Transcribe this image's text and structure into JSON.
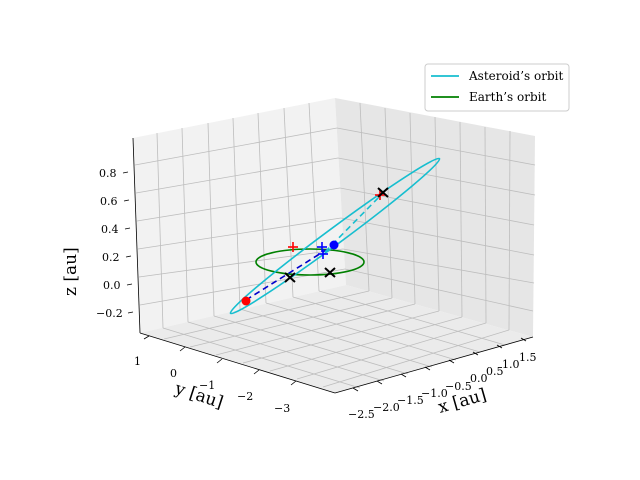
{
  "chart_data": {
    "type": "line",
    "projection": "3d",
    "title": "",
    "xlabel": "x [au]",
    "ylabel": "y [au]",
    "zlabel": "z [au]",
    "x_ticks": [
      "−2.5",
      "−2.0",
      "−1.5",
      "−1.0",
      "−0.5",
      "0.0",
      "0.5",
      "1.0",
      "1.5"
    ],
    "y_ticks": [
      "1",
      "0",
      "−1",
      "−2",
      "−3"
    ],
    "z_ticks": [
      "−0.2",
      "0.0",
      "0.2",
      "0.4",
      "0.6",
      "0.8"
    ],
    "xlim": [
      -2.7,
      1.7
    ],
    "ylim": [
      -3.6,
      1.2
    ],
    "zlim": [
      -0.3,
      0.9
    ],
    "grid": true,
    "legend_position": "top-right",
    "series": [
      {
        "name": "Asteroid’s orbit",
        "color": "#17becf",
        "style": "solid",
        "shape": "ellipse",
        "approx_span_x": [
          -2.6,
          1.6
        ],
        "approx_span_z": [
          -0.25,
          0.85
        ]
      },
      {
        "name": "Earth’s orbit",
        "color": "#008000",
        "style": "solid",
        "shape": "circle",
        "radius": 1.0,
        "z": 0.0
      }
    ],
    "markers": [
      {
        "symbol": "dot",
        "color": "#ff0000"
      },
      {
        "symbol": "dot",
        "color": "#0000ff"
      },
      {
        "symbol": "plus",
        "color": "#ff0000"
      },
      {
        "symbol": "plus",
        "color": "#0000ff"
      },
      {
        "symbol": "x",
        "color": "#000000"
      }
    ]
  }
}
